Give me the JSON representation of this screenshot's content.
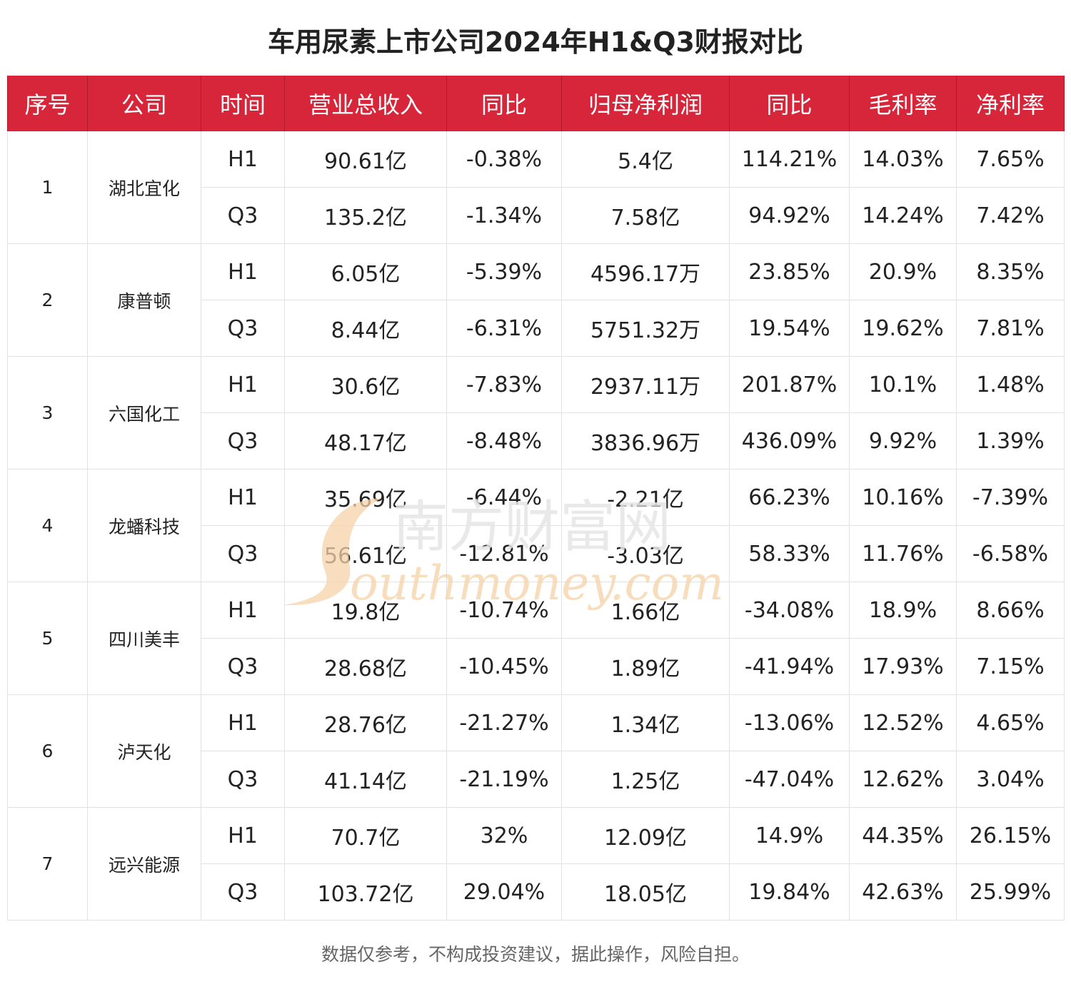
{
  "title": "车用尿素上市公司2024年H1&Q3财报对比",
  "chart_data": {
    "type": "table",
    "columns": [
      "序号",
      "公司",
      "时间",
      "营业总收入",
      "同比",
      "归母净利润",
      "同比",
      "毛利率",
      "净利率"
    ],
    "companies": [
      {
        "index": "1",
        "name": "湖北宜化",
        "periods": [
          {
            "period": "H1",
            "revenue": "90.61亿",
            "revenue_yoy": "-0.38%",
            "net_profit": "5.4亿",
            "profit_yoy": "114.21%",
            "gross_margin": "14.03%",
            "net_margin": "7.65%"
          },
          {
            "period": "Q3",
            "revenue": "135.2亿",
            "revenue_yoy": "-1.34%",
            "net_profit": "7.58亿",
            "profit_yoy": "94.92%",
            "gross_margin": "14.24%",
            "net_margin": "7.42%"
          }
        ]
      },
      {
        "index": "2",
        "name": "康普顿",
        "periods": [
          {
            "period": "H1",
            "revenue": "6.05亿",
            "revenue_yoy": "-5.39%",
            "net_profit": "4596.17万",
            "profit_yoy": "23.85%",
            "gross_margin": "20.9%",
            "net_margin": "8.35%"
          },
          {
            "period": "Q3",
            "revenue": "8.44亿",
            "revenue_yoy": "-6.31%",
            "net_profit": "5751.32万",
            "profit_yoy": "19.54%",
            "gross_margin": "19.62%",
            "net_margin": "7.81%"
          }
        ]
      },
      {
        "index": "3",
        "name": "六国化工",
        "periods": [
          {
            "period": "H1",
            "revenue": "30.6亿",
            "revenue_yoy": "-7.83%",
            "net_profit": "2937.11万",
            "profit_yoy": "201.87%",
            "gross_margin": "10.1%",
            "net_margin": "1.48%"
          },
          {
            "period": "Q3",
            "revenue": "48.17亿",
            "revenue_yoy": "-8.48%",
            "net_profit": "3836.96万",
            "profit_yoy": "436.09%",
            "gross_margin": "9.92%",
            "net_margin": "1.39%"
          }
        ]
      },
      {
        "index": "4",
        "name": "龙蟠科技",
        "periods": [
          {
            "period": "H1",
            "revenue": "35.69亿",
            "revenue_yoy": "-6.44%",
            "net_profit": "-2.21亿",
            "profit_yoy": "66.23%",
            "gross_margin": "10.16%",
            "net_margin": "-7.39%"
          },
          {
            "period": "Q3",
            "revenue": "56.61亿",
            "revenue_yoy": "-12.81%",
            "net_profit": "-3.03亿",
            "profit_yoy": "58.33%",
            "gross_margin": "11.76%",
            "net_margin": "-6.58%"
          }
        ]
      },
      {
        "index": "5",
        "name": "四川美丰",
        "periods": [
          {
            "period": "H1",
            "revenue": "19.8亿",
            "revenue_yoy": "-10.74%",
            "net_profit": "1.66亿",
            "profit_yoy": "-34.08%",
            "gross_margin": "18.9%",
            "net_margin": "8.66%"
          },
          {
            "period": "Q3",
            "revenue": "28.68亿",
            "revenue_yoy": "-10.45%",
            "net_profit": "1.89亿",
            "profit_yoy": "-41.94%",
            "gross_margin": "17.93%",
            "net_margin": "7.15%"
          }
        ]
      },
      {
        "index": "6",
        "name": "泸天化",
        "periods": [
          {
            "period": "H1",
            "revenue": "28.76亿",
            "revenue_yoy": "-21.27%",
            "net_profit": "1.34亿",
            "profit_yoy": "-13.06%",
            "gross_margin": "12.52%",
            "net_margin": "4.65%"
          },
          {
            "period": "Q3",
            "revenue": "41.14亿",
            "revenue_yoy": "-21.19%",
            "net_profit": "1.25亿",
            "profit_yoy": "-47.04%",
            "gross_margin": "12.62%",
            "net_margin": "3.04%"
          }
        ]
      },
      {
        "index": "7",
        "name": "远兴能源",
        "periods": [
          {
            "period": "H1",
            "revenue": "70.7亿",
            "revenue_yoy": "32%",
            "net_profit": "12.09亿",
            "profit_yoy": "14.9%",
            "gross_margin": "44.35%",
            "net_margin": "26.15%"
          },
          {
            "period": "Q3",
            "revenue": "103.72亿",
            "revenue_yoy": "29.04%",
            "net_profit": "18.05亿",
            "profit_yoy": "19.84%",
            "gross_margin": "42.63%",
            "net_margin": "25.99%"
          }
        ]
      }
    ]
  },
  "watermark": {
    "cn": "南方财富网",
    "en": "outhmoney.com",
    "color": "#f2c79a"
  },
  "footer": "数据仅参考，不构成投资建议，据此操作，风险自担。",
  "colors": {
    "header_bg": "#d7253a",
    "header_text": "#ffffff",
    "grid": "#e2e2e2"
  }
}
